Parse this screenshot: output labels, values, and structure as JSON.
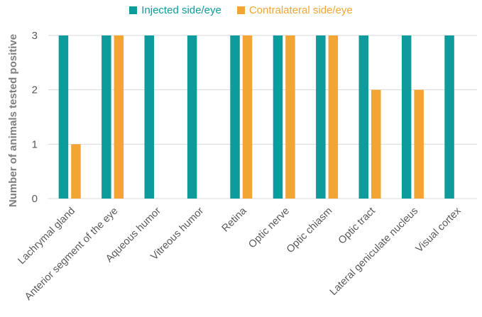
{
  "chart_data": {
    "type": "bar",
    "title": "",
    "xlabel": "",
    "ylabel": "Number of animals tested positive",
    "ylim": [
      0,
      3
    ],
    "yticks": [
      "0",
      "1",
      "2",
      "3"
    ],
    "grid": true,
    "legend_position": "top",
    "categories": [
      "Lachrymal gland",
      "Anterior segment of the eye",
      "Aqueous humor",
      "Vitreous humor",
      "Retina",
      "Optic nerve",
      "Optic chiasm",
      "Optic tract",
      "Lateral geniculate nucleus",
      "Visual cortex"
    ],
    "series": [
      {
        "name": "Injected side/eye",
        "color": "#0e9b9c",
        "values": [
          3,
          3,
          3,
          3,
          3,
          3,
          3,
          3,
          3,
          3
        ]
      },
      {
        "name": "Contralateral side/eye",
        "color": "#f3a533",
        "values": [
          1,
          3,
          0,
          0,
          3,
          3,
          3,
          2,
          2,
          0
        ]
      }
    ]
  }
}
